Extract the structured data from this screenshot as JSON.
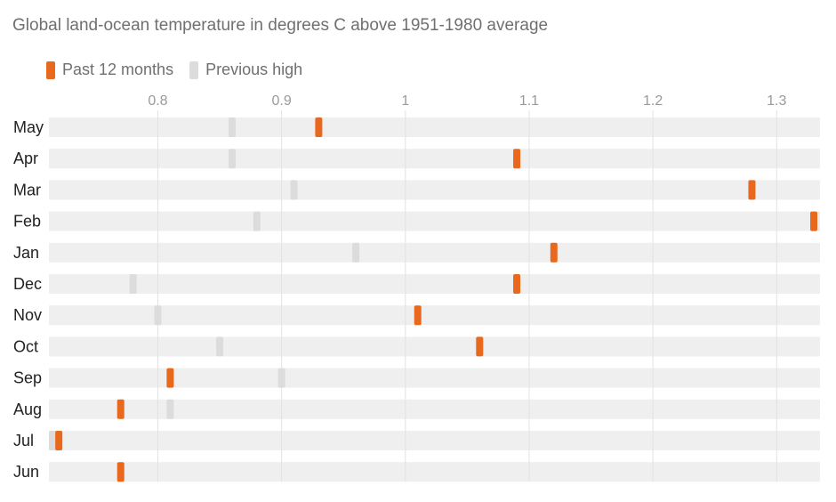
{
  "chart_data": {
    "type": "dot-range",
    "title": "Global land-ocean temperature in degrees C above 1951-1980 average",
    "legend": {
      "placement": "top-left",
      "items": [
        {
          "key": "current",
          "label": "Past 12 months",
          "color": "#e8681e"
        },
        {
          "key": "previous",
          "label": "Previous high",
          "color": "#dcdcdc"
        }
      ]
    },
    "xlim": [
      0.712,
      1.335
    ],
    "x_ticks": [
      {
        "value": 0.8,
        "label": "0.8"
      },
      {
        "value": 0.9,
        "label": "0.9"
      },
      {
        "value": 1.0,
        "label": "1"
      },
      {
        "value": 1.1,
        "label": "1.1"
      },
      {
        "value": 1.2,
        "label": "1.2"
      },
      {
        "value": 1.3,
        "label": "1.3"
      }
    ],
    "grid": "vertical",
    "categories": [
      "May",
      "Apr",
      "Mar",
      "Feb",
      "Jan",
      "Dec",
      "Nov",
      "Oct",
      "Sep",
      "Aug",
      "Jul",
      "Jun"
    ],
    "series": [
      {
        "name": "Past 12 months",
        "key": "current",
        "values": [
          0.93,
          1.09,
          1.28,
          1.33,
          1.12,
          1.09,
          1.01,
          1.06,
          0.81,
          0.77,
          0.72,
          0.77
        ]
      },
      {
        "name": "Previous high",
        "key": "previous",
        "values": [
          0.86,
          0.86,
          0.91,
          0.88,
          0.96,
          0.78,
          0.8,
          0.85,
          0.9,
          0.81,
          0.71,
          null
        ]
      }
    ]
  }
}
